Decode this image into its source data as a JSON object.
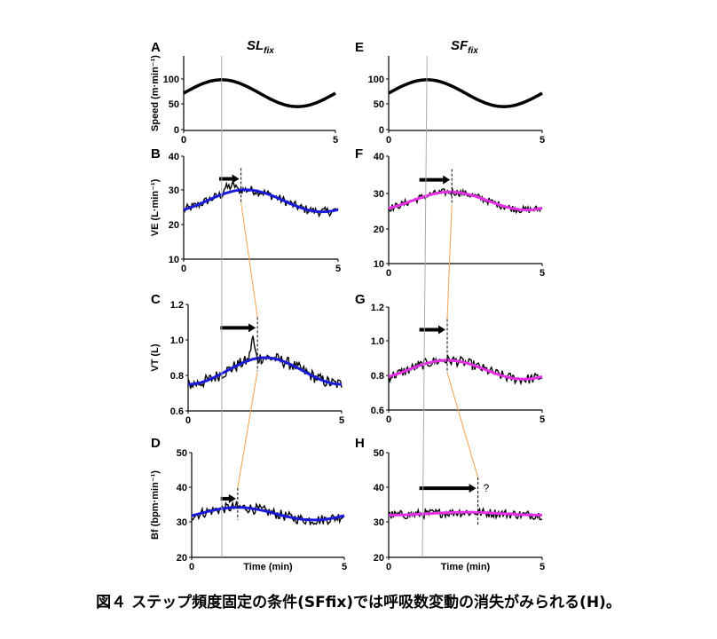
{
  "caption": "図４ ステップ頻度固定の条件(SFfix)では呼吸数変動の消失がみられる(H)。",
  "columns": [
    {
      "title_main": "SL",
      "title_sub": "fix"
    },
    {
      "title_main": "SF",
      "title_sub": "fix"
    }
  ],
  "colors": {
    "fit_left": "#1a1adc",
    "fit_right": "#e62ee6",
    "link": "#f5a04a",
    "ref": "#aaaaaa"
  },
  "xlabel": "Time (min)",
  "chart_data": [
    {
      "type": "line",
      "panel": "A",
      "ylabel": "Speed (m·min⁻¹)",
      "xlim": [
        0,
        5
      ],
      "ylim": [
        0,
        150
      ],
      "yticks": [
        0,
        50,
        100
      ],
      "xticks": [
        0,
        5
      ],
      "sine": {
        "mean": 75,
        "amp": 27,
        "peak": 1.25
      }
    },
    {
      "type": "line",
      "panel": "B",
      "ylabel": "VE (L·min⁻¹)",
      "xlim": [
        0,
        5
      ],
      "ylim": [
        10,
        40
      ],
      "yticks": [
        10,
        20,
        30,
        40
      ],
      "xticks": [
        0,
        5
      ],
      "sine": {
        "mean": 27,
        "amp": 3.2,
        "peak": 2.0
      },
      "noise": 1.3,
      "arrow": [
        1.15,
        1.8
      ]
    },
    {
      "type": "line",
      "panel": "C",
      "ylabel": "VT (L)",
      "xlim": [
        0,
        5
      ],
      "ylim": [
        0.6,
        1.2
      ],
      "yticks": [
        "0.6",
        "0.8",
        "1.0",
        "1.2"
      ],
      "xticks": [
        0,
        5
      ],
      "sine": {
        "mean": 0.825,
        "amp": 0.075,
        "peak": 2.5
      },
      "noise": 0.035,
      "arrow": [
        1.05,
        2.2
      ]
    },
    {
      "type": "line",
      "panel": "D",
      "ylabel": "Bf (bpm·min⁻¹)",
      "xlim": [
        0,
        5
      ],
      "ylim": [
        20,
        50
      ],
      "yticks": [
        20,
        30,
        40,
        50
      ],
      "xticks": [
        0,
        5
      ],
      "sine": {
        "mean": 32.5,
        "amp": 1.8,
        "peak": 1.5
      },
      "noise": 1.5,
      "arrow": [
        0.95,
        1.45
      ]
    },
    {
      "type": "line",
      "panel": "E",
      "ylabel": "",
      "xlim": [
        0,
        5
      ],
      "ylim": [
        0,
        150
      ],
      "yticks": [
        0,
        50,
        100
      ],
      "xticks": [
        0,
        5
      ],
      "sine": {
        "mean": 75,
        "amp": 27,
        "peak": 1.25
      }
    },
    {
      "type": "line",
      "panel": "F",
      "ylabel": "",
      "xlim": [
        0,
        5
      ],
      "ylim": [
        10,
        40
      ],
      "yticks": [
        10,
        20,
        30,
        40
      ],
      "xticks": [
        0,
        5
      ],
      "sine": {
        "mean": 27.5,
        "amp": 2.5,
        "peak": 2.0
      },
      "noise": 1.0,
      "arrow": [
        1.0,
        2.0
      ]
    },
    {
      "type": "line",
      "panel": "G",
      "ylabel": "",
      "xlim": [
        0,
        5
      ],
      "ylim": [
        0.6,
        1.2
      ],
      "yticks": [
        "0.6",
        "0.8",
        "1.0",
        "1.2"
      ],
      "xticks": [
        0,
        5
      ],
      "sine": {
        "mean": 0.835,
        "amp": 0.055,
        "peak": 1.9
      },
      "noise": 0.03,
      "arrow": [
        1.0,
        1.85
      ]
    },
    {
      "type": "line",
      "panel": "H",
      "ylabel": "",
      "xlim": [
        0,
        5
      ],
      "ylim": [
        20,
        50
      ],
      "yticks": [
        20,
        30,
        40,
        50
      ],
      "xticks": [
        0,
        5
      ],
      "sine": {
        "mean": 32.5,
        "amp": 0.4,
        "peak": 2.5
      },
      "noise": 1.3,
      "arrow": [
        1.0,
        2.85
      ],
      "note": "?"
    }
  ]
}
